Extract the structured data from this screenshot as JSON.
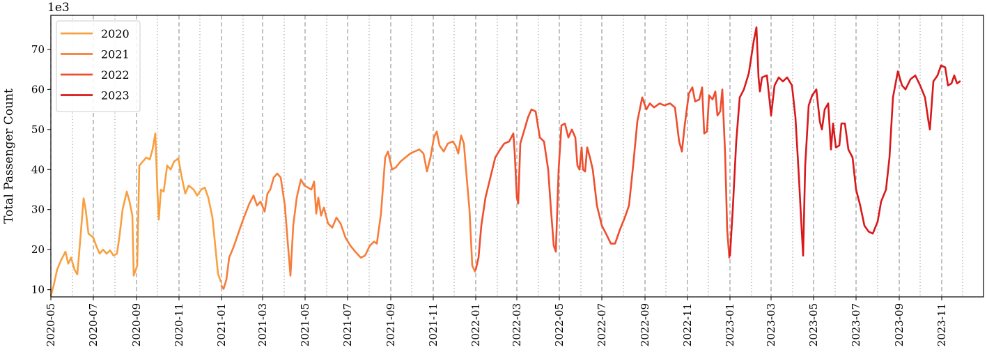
{
  "chart_data": {
    "type": "line",
    "title": "",
    "xlabel": "",
    "ylabel": "Total Passenger Count",
    "y_multiplier": "1e3",
    "xlim": [
      "2020-05-01",
      "2023-12-31"
    ],
    "ylim": [
      8.2,
      78.5
    ],
    "yticks": [
      10,
      20,
      30,
      40,
      50,
      60,
      70
    ],
    "xticks": [
      "2020-05",
      "2020-07",
      "2020-09",
      "2020-11",
      "2021-01",
      "2021-03",
      "2021-05",
      "2021-07",
      "2021-09",
      "2021-11",
      "2022-01",
      "2022-03",
      "2022-05",
      "2022-07",
      "2022-09",
      "2022-11",
      "2023-01",
      "2023-03",
      "2023-05",
      "2023-07",
      "2023-09",
      "2023-11"
    ],
    "month_gridlines": "dotted (odd months dashed at labeled ticks)",
    "legend": {
      "placement": "top-left",
      "entries": [
        "2020",
        "2021",
        "2022",
        "2023"
      ]
    },
    "series": [
      {
        "name": "2020",
        "color": "#f8a040",
        "points": [
          [
            "2020-05-01",
            8.5
          ],
          [
            "2020-05-05",
            11
          ],
          [
            "2020-05-10",
            15
          ],
          [
            "2020-05-16",
            17.5
          ],
          [
            "2020-05-22",
            19.5
          ],
          [
            "2020-05-26",
            16.5
          ],
          [
            "2020-05-30",
            18
          ],
          [
            "2020-06-04",
            15
          ],
          [
            "2020-06-08",
            13.8
          ],
          [
            "2020-06-12",
            22
          ],
          [
            "2020-06-17",
            32.8
          ],
          [
            "2020-06-20",
            30
          ],
          [
            "2020-06-24",
            24
          ],
          [
            "2020-07-01",
            23
          ],
          [
            "2020-07-05",
            21
          ],
          [
            "2020-07-10",
            19
          ],
          [
            "2020-07-15",
            20
          ],
          [
            "2020-07-20",
            19
          ],
          [
            "2020-07-25",
            19.8
          ],
          [
            "2020-07-30",
            18.5
          ],
          [
            "2020-08-04",
            19
          ],
          [
            "2020-08-08",
            24
          ],
          [
            "2020-08-12",
            30
          ],
          [
            "2020-08-18",
            34.5
          ],
          [
            "2020-08-22",
            32
          ],
          [
            "2020-08-26",
            28.5
          ],
          [
            "2020-08-28",
            13.5
          ],
          [
            "2020-09-02",
            16
          ],
          [
            "2020-09-05",
            41
          ],
          [
            "2020-09-10",
            42
          ],
          [
            "2020-09-15",
            43
          ],
          [
            "2020-09-20",
            42.5
          ],
          [
            "2020-09-24",
            45
          ],
          [
            "2020-09-28",
            49
          ],
          [
            "2020-10-01",
            34.5
          ],
          [
            "2020-10-03",
            27.5
          ],
          [
            "2020-10-06",
            35
          ],
          [
            "2020-10-10",
            34.5
          ],
          [
            "2020-10-15",
            41
          ],
          [
            "2020-10-20",
            40
          ],
          [
            "2020-10-25",
            42
          ],
          [
            "2020-10-31",
            42.8
          ],
          [
            "2020-11-05",
            38
          ],
          [
            "2020-11-10",
            34
          ],
          [
            "2020-11-15",
            36
          ],
          [
            "2020-11-22",
            35
          ],
          [
            "2020-11-27",
            33.5
          ],
          [
            "2020-12-03",
            35
          ],
          [
            "2020-12-08",
            35.5
          ],
          [
            "2020-12-13",
            33
          ],
          [
            "2020-12-19",
            28
          ],
          [
            "2020-12-23",
            21
          ],
          [
            "2020-12-27",
            14
          ],
          [
            "2020-12-31",
            12
          ]
        ]
      },
      {
        "name": "2021",
        "color": "#f77d3a",
        "points": [
          [
            "2021-01-01",
            11
          ],
          [
            "2021-01-04",
            10.2
          ],
          [
            "2021-01-08",
            12.5
          ],
          [
            "2021-01-12",
            18
          ],
          [
            "2021-01-18",
            20.5
          ],
          [
            "2021-01-25",
            24
          ],
          [
            "2021-02-01",
            27.5
          ],
          [
            "2021-02-10",
            31.5
          ],
          [
            "2021-02-16",
            33.5
          ],
          [
            "2021-02-21",
            31
          ],
          [
            "2021-02-26",
            32
          ],
          [
            "2021-03-04",
            29.5
          ],
          [
            "2021-03-08",
            34
          ],
          [
            "2021-03-12",
            35
          ],
          [
            "2021-03-17",
            38
          ],
          [
            "2021-03-22",
            39
          ],
          [
            "2021-03-27",
            38
          ],
          [
            "2021-04-02",
            31
          ],
          [
            "2021-04-06",
            22
          ],
          [
            "2021-04-10",
            13.5
          ],
          [
            "2021-04-14",
            26
          ],
          [
            "2021-04-19",
            33
          ],
          [
            "2021-04-25",
            37.5
          ],
          [
            "2021-04-30",
            36
          ],
          [
            "2021-05-05",
            35.5
          ],
          [
            "2021-05-10",
            35
          ],
          [
            "2021-05-14",
            37
          ],
          [
            "2021-05-17",
            29
          ],
          [
            "2021-05-20",
            33
          ],
          [
            "2021-05-24",
            28.5
          ],
          [
            "2021-05-28",
            30.5
          ],
          [
            "2021-06-03",
            26.5
          ],
          [
            "2021-06-09",
            25.5
          ],
          [
            "2021-06-15",
            28
          ],
          [
            "2021-06-21",
            26.5
          ],
          [
            "2021-06-28",
            23
          ],
          [
            "2021-07-05",
            21
          ],
          [
            "2021-07-12",
            19.5
          ],
          [
            "2021-07-20",
            18
          ],
          [
            "2021-07-26",
            18.5
          ],
          [
            "2021-08-02",
            21
          ],
          [
            "2021-08-08",
            22
          ],
          [
            "2021-08-12",
            21.5
          ],
          [
            "2021-08-18",
            29
          ],
          [
            "2021-08-24",
            43
          ],
          [
            "2021-08-28",
            44.5
          ],
          [
            "2021-09-03",
            40
          ],
          [
            "2021-09-08",
            40.5
          ],
          [
            "2021-09-15",
            42
          ],
          [
            "2021-09-22",
            43
          ],
          [
            "2021-09-29",
            44
          ],
          [
            "2021-10-05",
            44.5
          ],
          [
            "2021-10-12",
            45
          ],
          [
            "2021-10-18",
            44
          ],
          [
            "2021-10-23",
            39.5
          ],
          [
            "2021-10-28",
            43
          ],
          [
            "2021-11-02",
            48
          ],
          [
            "2021-11-06",
            49.5
          ],
          [
            "2021-11-10",
            46
          ],
          [
            "2021-11-16",
            44.5
          ],
          [
            "2021-11-22",
            46.5
          ],
          [
            "2021-11-29",
            47
          ],
          [
            "2021-12-03",
            46
          ],
          [
            "2021-12-07",
            44
          ],
          [
            "2021-12-11",
            48.5
          ],
          [
            "2021-12-15",
            46.5
          ],
          [
            "2021-12-19",
            38
          ],
          [
            "2021-12-23",
            30
          ],
          [
            "2021-12-27",
            16
          ],
          [
            "2021-12-31",
            14.5
          ]
        ]
      },
      {
        "name": "2022",
        "color": "#ee4d2e",
        "points": [
          [
            "2022-01-01",
            15
          ],
          [
            "2022-01-05",
            18
          ],
          [
            "2022-01-09",
            26
          ],
          [
            "2022-01-15",
            33
          ],
          [
            "2022-01-22",
            38
          ],
          [
            "2022-01-29",
            43
          ],
          [
            "2022-02-05",
            45
          ],
          [
            "2022-02-11",
            46.5
          ],
          [
            "2022-02-18",
            47
          ],
          [
            "2022-02-24",
            49
          ],
          [
            "2022-02-26",
            44
          ],
          [
            "2022-03-01",
            33
          ],
          [
            "2022-03-03",
            31.5
          ],
          [
            "2022-03-06",
            46.5
          ],
          [
            "2022-03-12",
            50
          ],
          [
            "2022-03-17",
            53
          ],
          [
            "2022-03-22",
            55
          ],
          [
            "2022-03-28",
            54.5
          ],
          [
            "2022-04-03",
            48
          ],
          [
            "2022-04-09",
            47
          ],
          [
            "2022-04-15",
            40
          ],
          [
            "2022-04-19",
            30
          ],
          [
            "2022-04-23",
            21
          ],
          [
            "2022-04-26",
            19.5
          ],
          [
            "2022-04-30",
            40
          ],
          [
            "2022-05-04",
            51
          ],
          [
            "2022-05-09",
            51.5
          ],
          [
            "2022-05-14",
            48
          ],
          [
            "2022-05-19",
            50
          ],
          [
            "2022-05-24",
            48
          ],
          [
            "2022-05-27",
            41
          ],
          [
            "2022-05-30",
            40
          ],
          [
            "2022-06-02",
            45.5
          ],
          [
            "2022-06-04",
            40
          ],
          [
            "2022-06-07",
            39.5
          ],
          [
            "2022-06-10",
            45.5
          ],
          [
            "2022-06-14",
            43
          ],
          [
            "2022-06-18",
            40
          ],
          [
            "2022-06-24",
            31
          ],
          [
            "2022-07-01",
            26
          ],
          [
            "2022-07-07",
            24
          ],
          [
            "2022-07-14",
            21.5
          ],
          [
            "2022-07-20",
            21.5
          ],
          [
            "2022-07-27",
            25
          ],
          [
            "2022-08-03",
            28
          ],
          [
            "2022-08-09",
            31
          ],
          [
            "2022-08-15",
            41
          ],
          [
            "2022-08-21",
            52
          ],
          [
            "2022-08-28",
            58
          ],
          [
            "2022-09-03",
            55
          ],
          [
            "2022-09-08",
            56.5
          ],
          [
            "2022-09-14",
            55.5
          ],
          [
            "2022-09-22",
            56.5
          ],
          [
            "2022-09-29",
            56
          ],
          [
            "2022-10-07",
            56.5
          ],
          [
            "2022-10-14",
            55.5
          ],
          [
            "2022-10-20",
            47
          ],
          [
            "2022-10-24",
            44.5
          ],
          [
            "2022-10-28",
            51
          ],
          [
            "2022-11-03",
            59
          ],
          [
            "2022-11-08",
            60.5
          ],
          [
            "2022-11-12",
            57
          ],
          [
            "2022-11-18",
            57.5
          ],
          [
            "2022-11-22",
            60.5
          ],
          [
            "2022-11-25",
            49
          ],
          [
            "2022-11-29",
            49.5
          ],
          [
            "2022-12-02",
            58.5
          ],
          [
            "2022-12-07",
            57.5
          ],
          [
            "2022-12-11",
            59.5
          ],
          [
            "2022-12-14",
            53.5
          ],
          [
            "2022-12-18",
            54.5
          ],
          [
            "2022-12-21",
            60
          ],
          [
            "2022-12-25",
            44
          ],
          [
            "2022-12-28",
            25
          ],
          [
            "2022-12-31",
            18
          ]
        ]
      },
      {
        "name": "2023",
        "color": "#d7191c",
        "points": [
          [
            "2023-01-01",
            18.5
          ],
          [
            "2023-01-05",
            30
          ],
          [
            "2023-01-10",
            47
          ],
          [
            "2023-01-15",
            58
          ],
          [
            "2023-01-21",
            60
          ],
          [
            "2023-01-28",
            64
          ],
          [
            "2023-02-04",
            72
          ],
          [
            "2023-02-08",
            75.5
          ],
          [
            "2023-02-11",
            63
          ],
          [
            "2023-02-13",
            59.5
          ],
          [
            "2023-02-16",
            63
          ],
          [
            "2023-02-23",
            63.5
          ],
          [
            "2023-02-27",
            57
          ],
          [
            "2023-03-01",
            53.5
          ],
          [
            "2023-03-06",
            61
          ],
          [
            "2023-03-12",
            63
          ],
          [
            "2023-03-18",
            62
          ],
          [
            "2023-03-24",
            63
          ],
          [
            "2023-03-31",
            61
          ],
          [
            "2023-04-05",
            53
          ],
          [
            "2023-04-10",
            38
          ],
          [
            "2023-04-13",
            28
          ],
          [
            "2023-04-16",
            18.5
          ],
          [
            "2023-04-19",
            41
          ],
          [
            "2023-04-24",
            56
          ],
          [
            "2023-04-29",
            58.5
          ],
          [
            "2023-05-05",
            60
          ],
          [
            "2023-05-10",
            52
          ],
          [
            "2023-05-13",
            50
          ],
          [
            "2023-05-17",
            55
          ],
          [
            "2023-05-22",
            56.5
          ],
          [
            "2023-05-26",
            45
          ],
          [
            "2023-05-29",
            51.5
          ],
          [
            "2023-06-02",
            45.5
          ],
          [
            "2023-06-07",
            46
          ],
          [
            "2023-06-10",
            51.5
          ],
          [
            "2023-06-15",
            51.5
          ],
          [
            "2023-06-20",
            45
          ],
          [
            "2023-06-26",
            43
          ],
          [
            "2023-07-01",
            35
          ],
          [
            "2023-07-07",
            31
          ],
          [
            "2023-07-13",
            26
          ],
          [
            "2023-07-19",
            24.5
          ],
          [
            "2023-07-25",
            24
          ],
          [
            "2023-08-01",
            27
          ],
          [
            "2023-08-06",
            32
          ],
          [
            "2023-08-13",
            35
          ],
          [
            "2023-08-18",
            43
          ],
          [
            "2023-08-23",
            58
          ],
          [
            "2023-08-30",
            64.5
          ],
          [
            "2023-09-05",
            61
          ],
          [
            "2023-09-10",
            60
          ],
          [
            "2023-09-17",
            62.5
          ],
          [
            "2023-09-24",
            63.5
          ],
          [
            "2023-10-01",
            61
          ],
          [
            "2023-10-08",
            58
          ],
          [
            "2023-10-13",
            52
          ],
          [
            "2023-10-15",
            50
          ],
          [
            "2023-10-20",
            62
          ],
          [
            "2023-10-26",
            63.5
          ],
          [
            "2023-10-31",
            66
          ],
          [
            "2023-11-06",
            65.5
          ],
          [
            "2023-11-10",
            61
          ],
          [
            "2023-11-15",
            61.5
          ],
          [
            "2023-11-19",
            63.5
          ],
          [
            "2023-11-23",
            61.5
          ],
          [
            "2023-11-27",
            62
          ]
        ]
      }
    ]
  }
}
